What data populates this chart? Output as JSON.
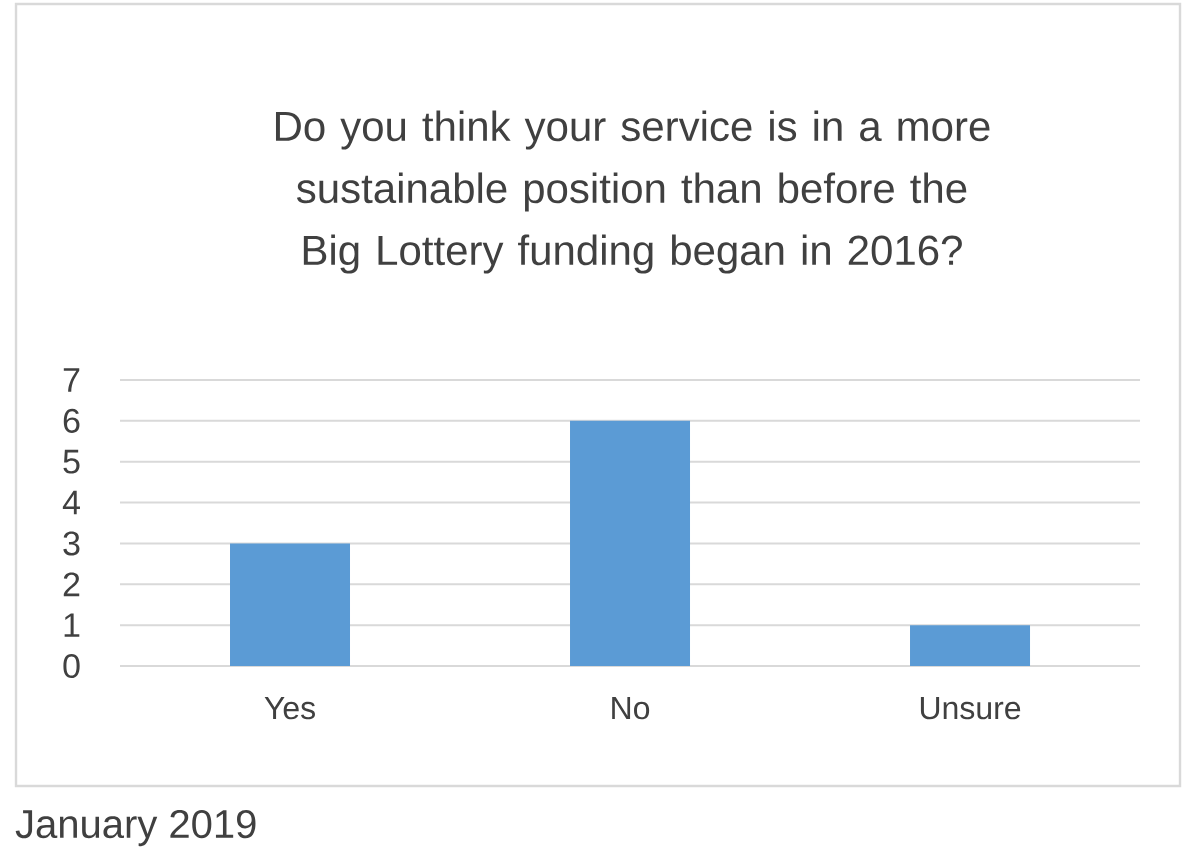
{
  "chart_data": {
    "type": "bar",
    "title": "Do you think your service is in a more sustainable position than before the Big Lottery funding began in 2016?",
    "categories": [
      "Yes",
      "No",
      "Unsure"
    ],
    "values": [
      3,
      6,
      1
    ],
    "color": "#5b9bd5",
    "ylim": [
      0,
      7
    ],
    "yticks": [
      0,
      1,
      2,
      3,
      4,
      5,
      6,
      7
    ],
    "grid": "y",
    "annotations": [
      "January 2019"
    ]
  }
}
